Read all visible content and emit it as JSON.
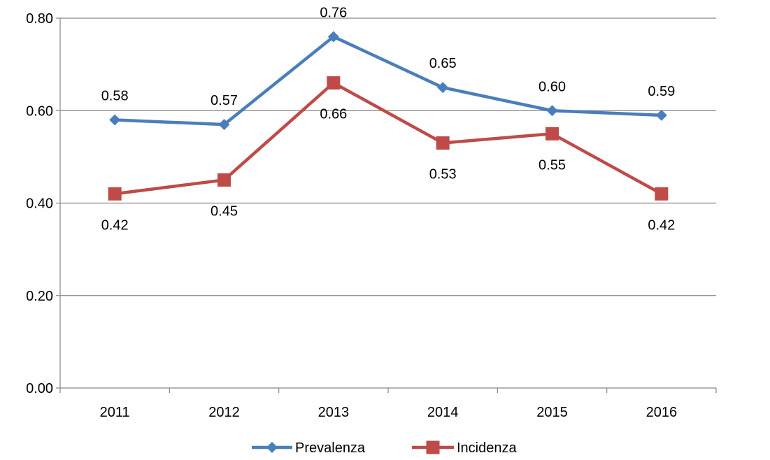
{
  "chart_data": {
    "type": "line",
    "categories": [
      "2011",
      "2012",
      "2013",
      "2014",
      "2015",
      "2016"
    ],
    "series": [
      {
        "name": "Prevalenza",
        "values": [
          0.58,
          0.57,
          0.76,
          0.65,
          0.6,
          0.59
        ],
        "labels": [
          "0.58",
          "0.57",
          "0.76",
          "0.65",
          "0.60",
          "0.59"
        ],
        "color": "#4a7ebb",
        "marker": "diamond",
        "label_position": "above"
      },
      {
        "name": "Incidenza",
        "values": [
          0.42,
          0.45,
          0.66,
          0.53,
          0.55,
          0.42
        ],
        "labels": [
          "0.42",
          "0.45",
          "0.66",
          "0.53",
          "0.55",
          "0.42"
        ],
        "color": "#be4b48",
        "marker": "square",
        "label_position": "below"
      }
    ],
    "ylim": [
      0,
      0.8
    ],
    "yticks": [
      0,
      0.2,
      0.4,
      0.6,
      0.8
    ],
    "ytick_labels": [
      "0.00",
      "0.20",
      "0.40",
      "0.60",
      "0.80"
    ],
    "grid": true,
    "legend": "bottom",
    "gridline_color": "#868686",
    "axis_color": "#868686"
  }
}
